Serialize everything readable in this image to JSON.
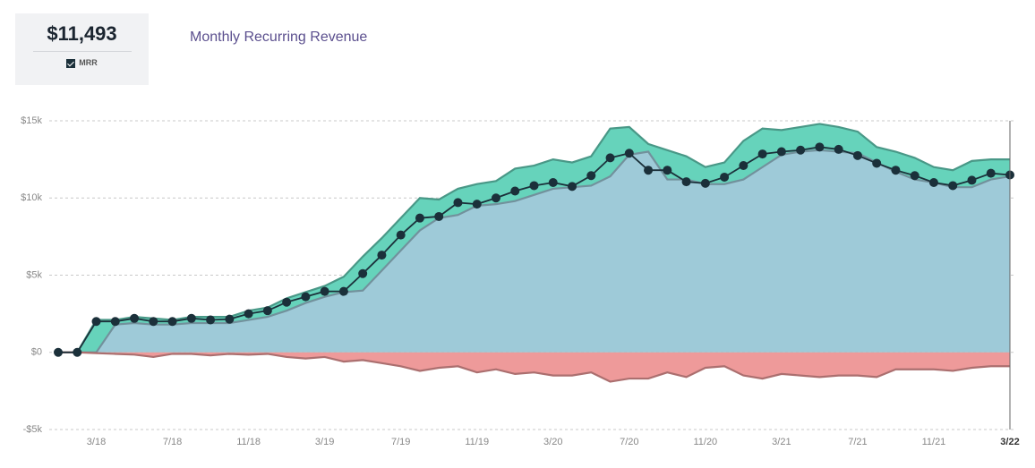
{
  "headline": "$11,493",
  "chart_data": {
    "type": "area",
    "title": "Monthly Recurring Revenue",
    "categories": [
      "",
      "",
      "3/18",
      "",
      "",
      "",
      "7/18",
      "",
      "",
      "",
      "11/18",
      "",
      "",
      "",
      "3/19",
      "",
      "",
      "",
      "7/19",
      "",
      "",
      "",
      "11/19",
      "",
      "",
      "",
      "3/20",
      "",
      "",
      "",
      "7/20",
      "",
      "",
      "",
      "11/20",
      "",
      "",
      "",
      "3/21",
      "",
      "",
      "",
      "7/21",
      "",
      "",
      "",
      "11/21",
      "",
      "",
      "",
      "3/22"
    ],
    "series": [
      {
        "name": "MRR",
        "type": "line",
        "color": "#1b303a",
        "values": [
          0,
          0,
          2000,
          2000,
          2200,
          2000,
          2000,
          2200,
          2100,
          2150,
          2500,
          2700,
          3250,
          3600,
          3950,
          3950,
          5100,
          6300,
          7600,
          8700,
          8800,
          9700,
          9600,
          10000,
          10450,
          10800,
          11000,
          10750,
          11450,
          12600,
          12900,
          11800,
          11800,
          11050,
          10950,
          11350,
          12100,
          12850,
          13000,
          13100,
          13300,
          13150,
          12750,
          12250,
          11800,
          11450,
          11000,
          10800,
          11150,
          11600,
          11493
        ]
      },
      {
        "type": "area",
        "color": "#66d3bb",
        "values": [
          0,
          0,
          2100,
          2100,
          2300,
          2200,
          2100,
          2300,
          2300,
          2300,
          2700,
          2900,
          3500,
          3900,
          4300,
          4900,
          6200,
          7400,
          8700,
          10000,
          9900,
          10600,
          10900,
          11100,
          11900,
          12100,
          12500,
          12300,
          12700,
          14500,
          14600,
          13500,
          13100,
          12700,
          12000,
          12300,
          13700,
          14500,
          14400,
          14600,
          14800,
          14600,
          14300,
          13300,
          13000,
          12600,
          12000,
          11800,
          12400,
          12500,
          12500
        ]
      },
      {
        "type": "area",
        "color": "#9ecad8",
        "values": [
          0,
          0,
          0,
          1800,
          1900,
          1800,
          1800,
          1900,
          1900,
          1900,
          2100,
          2300,
          2700,
          3200,
          3600,
          3900,
          4000,
          5300,
          6600,
          7900,
          8700,
          8900,
          9500,
          9600,
          9800,
          10200,
          10600,
          10700,
          10800,
          11400,
          12800,
          13000,
          11200,
          11200,
          10900,
          10900,
          11200,
          12000,
          12800,
          13000,
          13100,
          13000,
          12900,
          12300,
          11700,
          11200,
          11000,
          10700,
          10700,
          11200,
          11400
        ]
      },
      {
        "type": "area",
        "color": "#ee9a9a",
        "values": [
          0,
          0,
          -50,
          -100,
          -150,
          -300,
          -100,
          -100,
          -200,
          -100,
          -150,
          -100,
          -300,
          -400,
          -300,
          -600,
          -500,
          -700,
          -900,
          -1200,
          -1000,
          -900,
          -1300,
          -1100,
          -1400,
          -1300,
          -1500,
          -1500,
          -1300,
          -1900,
          -1700,
          -1700,
          -1300,
          -1600,
          -1000,
          -900,
          -1500,
          -1700,
          -1400,
          -1500,
          -1600,
          -1500,
          -1500,
          -1600,
          -1100,
          -1100,
          -1100,
          -1200,
          -1000,
          -900,
          -900
        ]
      }
    ],
    "ylim": [
      -5000,
      15000
    ],
    "yticks": [
      {
        "value": -5000,
        "label": "-$5k"
      },
      {
        "value": 0,
        "label": "$0"
      },
      {
        "value": 5000,
        "label": "$5k"
      },
      {
        "value": 10000,
        "label": "$10k"
      },
      {
        "value": 15000,
        "label": "$15k"
      }
    ],
    "grid": true
  }
}
